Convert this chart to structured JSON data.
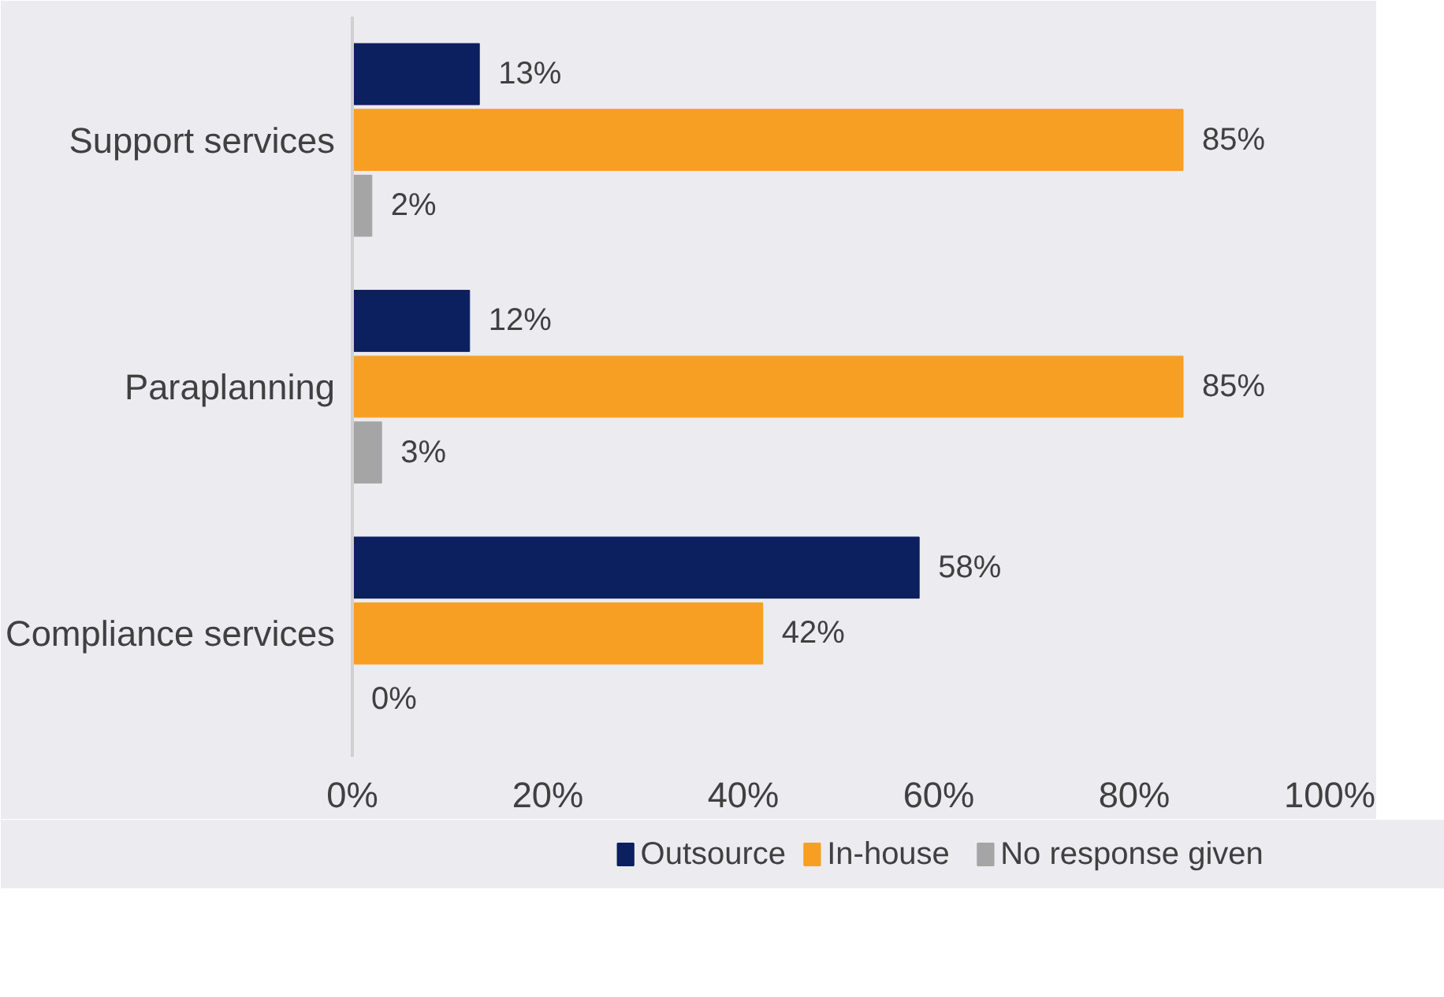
{
  "chart_data": {
    "type": "bar",
    "orientation": "horizontal",
    "categories": [
      "Support services",
      "Paraplanning",
      "Compliance services"
    ],
    "series": [
      {
        "name": "Outsource",
        "color": "#0c1f5e",
        "values": [
          13,
          12,
          58
        ],
        "value_labels": [
          "13%",
          "12%",
          "58%"
        ]
      },
      {
        "name": "In-house",
        "color": "#f79f22",
        "values": [
          85,
          85,
          42
        ],
        "value_labels": [
          "85%",
          "85%",
          "42%"
        ]
      },
      {
        "name": "No response given",
        "color": "#a5a5a5",
        "values": [
          2,
          3,
          0
        ],
        "value_labels": [
          "2%",
          "3%",
          "0%"
        ]
      }
    ],
    "xlim": [
      0,
      100
    ],
    "xticks": [
      {
        "value": 0,
        "label": "0%"
      },
      {
        "value": 20,
        "label": "20%"
      },
      {
        "value": 40,
        "label": "40%"
      },
      {
        "value": 60,
        "label": "60%"
      },
      {
        "value": 80,
        "label": "80%"
      },
      {
        "value": 100,
        "label": "100%"
      }
    ],
    "grid": false,
    "legend": "bottom"
  }
}
